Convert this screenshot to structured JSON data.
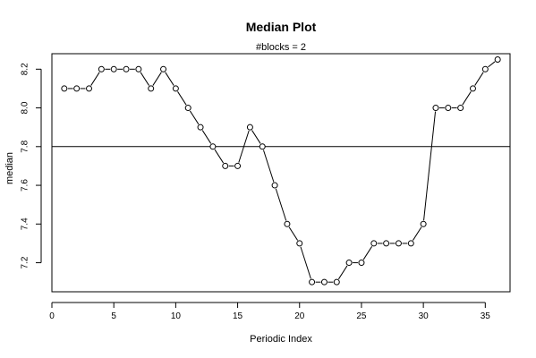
{
  "chart_data": {
    "type": "line",
    "title": "Median Plot",
    "subtitle": "#blocks =  2",
    "xlabel": "Periodic Index",
    "ylabel": "median",
    "xlim": [
      0,
      37
    ],
    "ylim": [
      7.05,
      8.28
    ],
    "xticks": [
      0,
      5,
      10,
      15,
      20,
      25,
      30,
      35
    ],
    "yticks": [
      7.2,
      7.4,
      7.6,
      7.8,
      8.0,
      8.2
    ],
    "yticklabels": [
      "7.2",
      "7.4",
      "7.6",
      "7.8",
      "8.0",
      "8.2"
    ],
    "reference_line": 7.8,
    "grid": false,
    "markers": "open-circle",
    "series": [
      {
        "x": [
          1,
          2,
          3,
          4,
          5,
          6,
          7,
          8,
          9,
          10,
          11,
          12,
          13,
          14,
          15,
          16,
          17,
          18,
          19,
          20,
          21,
          22,
          23,
          24,
          25,
          26,
          27,
          28,
          29,
          30,
          31,
          32,
          33,
          34,
          35,
          36
        ],
        "values": [
          8.1,
          8.1,
          8.1,
          8.2,
          8.2,
          8.2,
          8.2,
          8.1,
          8.2,
          8.1,
          8.0,
          7.9,
          7.8,
          7.7,
          7.7,
          7.9,
          7.8,
          7.6,
          7.4,
          7.3,
          7.1,
          7.1,
          7.1,
          7.2,
          7.2,
          7.3,
          7.3,
          7.3,
          7.3,
          7.4,
          8.0,
          8.0,
          8.0,
          8.1,
          8.2,
          8.25
        ]
      }
    ]
  }
}
